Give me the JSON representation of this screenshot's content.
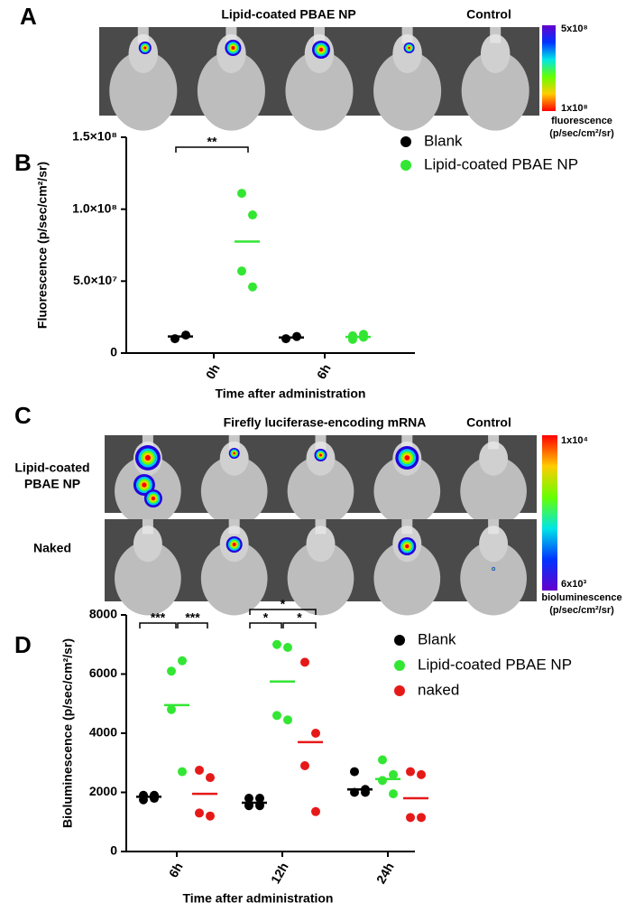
{
  "panels": {
    "A": {
      "letter": "A",
      "title": "Lipid-coated PBAE NP",
      "control": "Control",
      "scale_max": "5x10⁸",
      "scale_min": "1x10⁸",
      "scale_label": "fluorescence",
      "scale_unit": "(p/sec/cm²/sr)"
    },
    "B": {
      "letter": "B"
    },
    "C": {
      "letter": "C",
      "title": "Firefly luciferase-encoding mRNA",
      "control": "Control",
      "row_labels": [
        [
          "Lipid-coated",
          "PBAE NP"
        ],
        [
          "Naked"
        ]
      ],
      "scale_max": "1x10⁴",
      "scale_min": "6x10³",
      "scale_label": "bioluminescence",
      "scale_unit": "(p/sec/cm²/sr)"
    },
    "D": {
      "letter": "D"
    }
  },
  "chart_data": [
    {
      "type": "dot",
      "x_label": "Time after administration",
      "y_label": "Fluorescence (p/sec/cm²/sr)",
      "categories": [
        "0h",
        "6h"
      ],
      "series": [
        {
          "name": "Blank",
          "color": "#000000",
          "values": [
            [
              10000000,
              12500000
            ],
            [
              10000000,
              11500000
            ]
          ],
          "means": [
            11500000,
            10800000
          ]
        },
        {
          "name": "Lipid-coated PBAE NP",
          "color": "#33e633",
          "values": [
            [
              111000000,
              96000000,
              57000000,
              46000000
            ],
            [
              9500000,
              11000000,
              12000000,
              13000000
            ]
          ],
          "means": [
            77500000,
            11200000
          ]
        }
      ],
      "ylim": [
        0,
        150000000
      ],
      "yticks": [
        0,
        {
          "value": 50000000,
          "label": "5.0×10⁷"
        },
        {
          "value": 100000000,
          "label": "1.0×10⁸"
        },
        {
          "value": 150000000,
          "label": "1.5×10⁸"
        }
      ],
      "annotations": [
        {
          "text": "**"
        }
      ],
      "legend": "upper right"
    },
    {
      "type": "dot",
      "x_label": "Time after administration",
      "y_label": "Bioluminescence (p/sec/cm²/sr)",
      "categories": [
        "6h",
        "12h",
        "24h"
      ],
      "series": [
        {
          "name": "Blank",
          "color": "#000000",
          "values": [
            [
              1900,
              1800,
              1750,
              1900
            ],
            [
              1800,
              1800,
              1550,
              1550
            ],
            [
              2700,
              2100,
              2000,
              2000
            ]
          ],
          "means": [
            1850,
            1650,
            2100
          ]
        },
        {
          "name": "Lipid-coated PBAE NP",
          "color": "#33e633",
          "values": [
            [
              6100,
              6450,
              4800,
              2700
            ],
            [
              7000,
              6900,
              4600,
              4450
            ],
            [
              3100,
              2600,
              2400,
              1950
            ]
          ],
          "means": [
            4950,
            5750,
            2450
          ]
        },
        {
          "name": "naked",
          "color": "#e61919",
          "values": [
            [
              2750,
              2500,
              1300,
              1200
            ],
            [
              6400,
              4000,
              2900,
              1350
            ],
            [
              2700,
              2600,
              1150,
              1150
            ]
          ],
          "means": [
            1950,
            3700,
            1800
          ]
        }
      ],
      "ylim": [
        0,
        8000
      ],
      "yticks": [
        0,
        2000,
        4000,
        6000,
        8000
      ],
      "annotations": [
        {
          "text": "***"
        },
        {
          "text": "***"
        },
        {
          "text": "*"
        },
        {
          "text": "*"
        },
        {
          "text": "*"
        }
      ],
      "legend": "upper right"
    }
  ]
}
